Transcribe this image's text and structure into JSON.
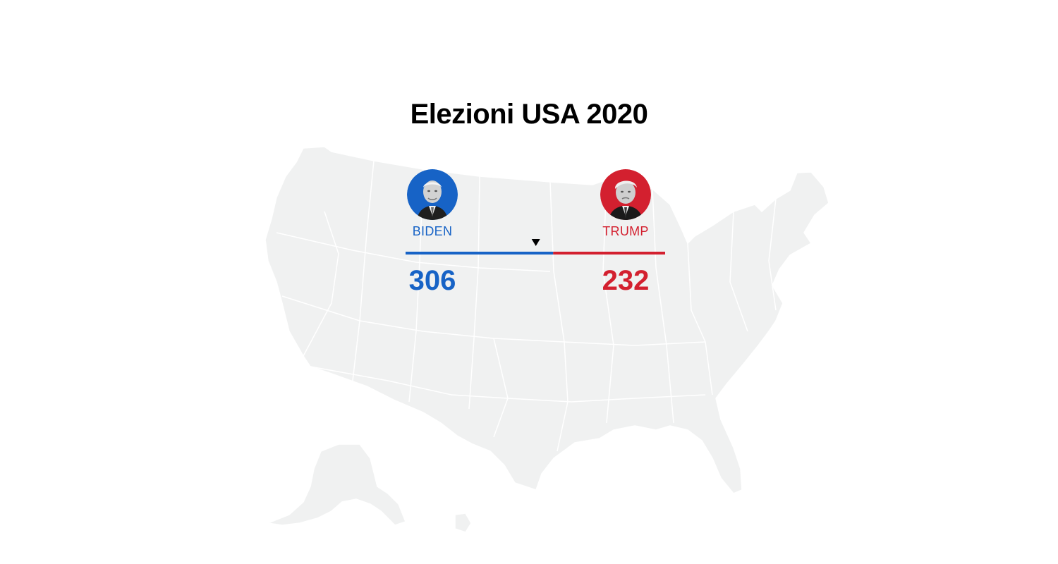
{
  "title": "Elezioni USA 2020",
  "colors": {
    "democrat": "#1763c6",
    "republican": "#d3202f",
    "undecided": "#c9cacc",
    "map_fill": "#f0f1f1",
    "map_border": "#ffffff",
    "marker": "#000000"
  },
  "candidates": [
    {
      "name": "BIDEN",
      "votes": "306",
      "avatar": "biden-portrait"
    },
    {
      "name": "TRUMP",
      "votes": "232",
      "avatar": "trump-portrait"
    }
  ],
  "chart_data": {
    "type": "bar",
    "total_electoral_votes": 538,
    "threshold": 270,
    "series": [
      {
        "name": "BIDEN",
        "value": 306
      },
      {
        "name": "TRUMP",
        "value": 232
      }
    ],
    "marker": "threshold-triangle"
  }
}
